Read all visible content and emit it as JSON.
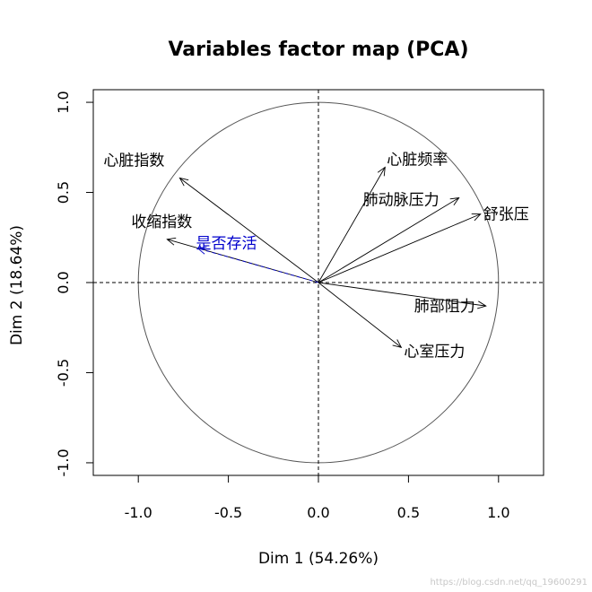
{
  "chart_data": {
    "type": "scatter",
    "subtype": "pca-variables-factor-map",
    "title": "Variables factor map (PCA)",
    "xlabel": "Dim 1 (54.26%)",
    "ylabel": "Dim 2 (18.64%)",
    "xlim": [
      -1.25,
      1.25
    ],
    "ylim": [
      -1.07,
      1.07
    ],
    "xticks": [
      -1.0,
      -0.5,
      0.0,
      0.5,
      1.0
    ],
    "xtick_labels": [
      "-1.0",
      "-0.5",
      "0.0",
      "0.5",
      "1.0"
    ],
    "yticks": [
      -1.0,
      -0.5,
      0.0,
      0.5,
      1.0
    ],
    "ytick_labels": [
      "-1.0",
      "-0.5",
      "0.0",
      "0.5",
      "1.0"
    ],
    "unit_circle": true,
    "reference_lines": [
      0,
      0
    ],
    "variables": [
      {
        "name": "心脏指数",
        "x": -0.77,
        "y": 0.58,
        "color": "#000000"
      },
      {
        "name": "收缩指数",
        "x": -0.84,
        "y": 0.24,
        "color": "#000000"
      },
      {
        "name": "是否存活",
        "x": -0.67,
        "y": 0.19,
        "color": "#0000cc",
        "dashed": true
      },
      {
        "name": "心脏频率",
        "x": 0.37,
        "y": 0.64,
        "color": "#000000"
      },
      {
        "name": "肺动脉压力",
        "x": 0.78,
        "y": 0.47,
        "color": "#000000"
      },
      {
        "name": "舒张压",
        "x": 0.9,
        "y": 0.38,
        "color": "#000000"
      },
      {
        "name": "肺部阻力",
        "x": 0.93,
        "y": -0.13,
        "color": "#000000"
      },
      {
        "name": "心室压力",
        "x": 0.46,
        "y": -0.36,
        "color": "#000000"
      }
    ]
  },
  "watermark": "https://blog.csdn.net/qq_19600291"
}
